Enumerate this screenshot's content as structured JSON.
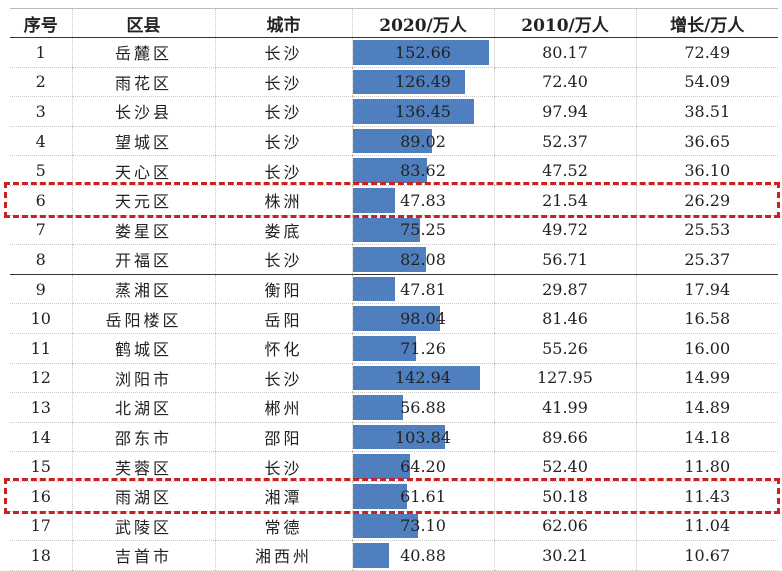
{
  "chart_data": {
    "type": "table",
    "headers": [
      "序号",
      "区县",
      "城市",
      "2020/万人",
      "2010/万人",
      "增长/万人"
    ],
    "bar_scale_max": 152.66,
    "rows": [
      {
        "rank": "1",
        "district": "岳麓区",
        "city": "长沙",
        "p2020": 152.66,
        "p2010": "80.17",
        "growth": "72.49"
      },
      {
        "rank": "2",
        "district": "雨花区",
        "city": "长沙",
        "p2020": 126.49,
        "p2010": "72.40",
        "growth": "54.09"
      },
      {
        "rank": "3",
        "district": "长沙县",
        "city": "长沙",
        "p2020": 136.45,
        "p2010": "97.94",
        "growth": "38.51"
      },
      {
        "rank": "4",
        "district": "望城区",
        "city": "长沙",
        "p2020": 89.02,
        "p2010": "52.37",
        "growth": "36.65"
      },
      {
        "rank": "5",
        "district": "天心区",
        "city": "长沙",
        "p2020": 83.62,
        "p2010": "47.52",
        "growth": "36.10"
      },
      {
        "rank": "6",
        "district": "天元区",
        "city": "株洲",
        "p2020": 47.83,
        "p2010": "21.54",
        "growth": "26.29"
      },
      {
        "rank": "7",
        "district": "娄星区",
        "city": "娄底",
        "p2020": 75.25,
        "p2010": "49.72",
        "growth": "25.53"
      },
      {
        "rank": "8",
        "district": "开福区",
        "city": "长沙",
        "p2020": 82.08,
        "p2010": "56.71",
        "growth": "25.37"
      },
      {
        "rank": "9",
        "district": "蒸湘区",
        "city": "衡阳",
        "p2020": 47.81,
        "p2010": "29.87",
        "growth": "17.94"
      },
      {
        "rank": "10",
        "district": "岳阳楼区",
        "city": "岳阳",
        "p2020": 98.04,
        "p2010": "81.46",
        "growth": "16.58"
      },
      {
        "rank": "11",
        "district": "鹤城区",
        "city": "怀化",
        "p2020": 71.26,
        "p2010": "55.26",
        "growth": "16.00"
      },
      {
        "rank": "12",
        "district": "浏阳市",
        "city": "长沙",
        "p2020": 142.94,
        "p2010": "127.95",
        "growth": "14.99"
      },
      {
        "rank": "13",
        "district": "北湖区",
        "city": "郴州",
        "p2020": 56.88,
        "p2010": "41.99",
        "growth": "14.89"
      },
      {
        "rank": "14",
        "district": "邵东市",
        "city": "邵阳",
        "p2020": 103.84,
        "p2010": "89.66",
        "growth": "14.18"
      },
      {
        "rank": "15",
        "district": "芙蓉区",
        "city": "长沙",
        "p2020": 64.2,
        "p2010": "52.40",
        "growth": "11.80"
      },
      {
        "rank": "16",
        "district": "雨湖区",
        "city": "湘潭",
        "p2020": 61.61,
        "p2010": "50.18",
        "growth": "11.43"
      },
      {
        "rank": "17",
        "district": "武陵区",
        "city": "常德",
        "p2020": 73.1,
        "p2010": "62.06",
        "growth": "11.04"
      },
      {
        "rank": "18",
        "district": "吉首市",
        "city": "湘西州",
        "p2020": 40.88,
        "p2010": "30.21",
        "growth": "10.67"
      }
    ],
    "separator_after_rank": "8",
    "highlighted_ranks": [
      "6",
      "16"
    ],
    "colors": {
      "bar": "#4f7fbf",
      "highlight": "#c9211e"
    }
  }
}
